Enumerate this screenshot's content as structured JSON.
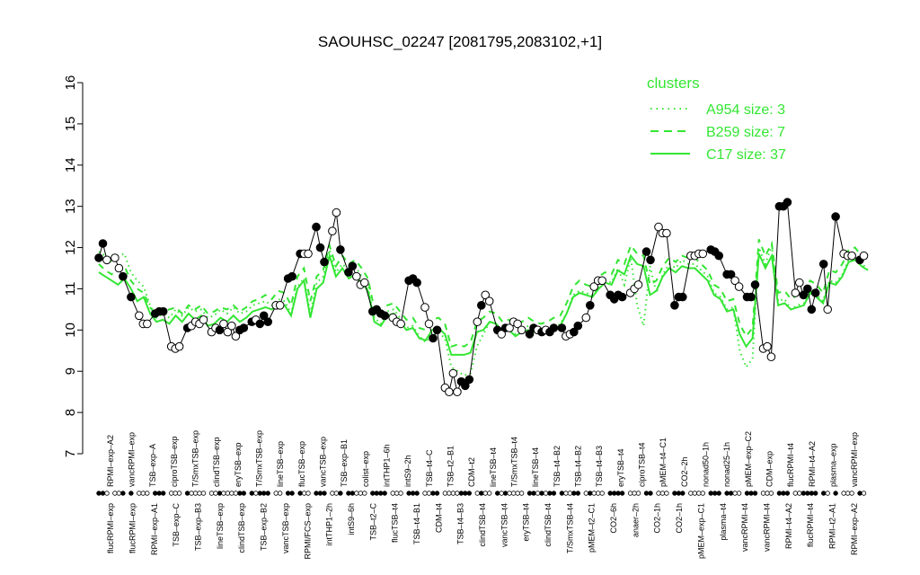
{
  "chart_data": {
    "type": "line",
    "title": "SAOUHSC_02247 [2081795,2083102,+1]",
    "xlabel": "",
    "ylabel": "",
    "ylim": [
      7,
      16
    ],
    "yticks": [
      7,
      8,
      9,
      10,
      11,
      12,
      13,
      14,
      15,
      16
    ],
    "colors": {
      "cluster": "#33e633",
      "main": "#000000"
    },
    "legend": {
      "placement": "top-right",
      "title": "clusters",
      "items": [
        {
          "label": "A954 size: 3",
          "style": "dotted"
        },
        {
          "label": "B259 size: 7",
          "style": "dashed"
        },
        {
          "label": "C17 size: 37",
          "style": "solid"
        }
      ]
    },
    "top_labels": [
      "RPMI–exp–A2",
      "vancRPMI–exp",
      "TSB–exp–A",
      "ciproTSB–exp",
      "T/SmxTSB–exp",
      "clindTSB–exp",
      "eryTSB–exp",
      "T/SmxTSB–exp",
      "lineTSB–exp",
      "flucTSB–exp",
      "vancTSB–exp",
      "TSB–exp–B1",
      "colist–exp",
      "intTHP1–6h",
      "intS9–2h",
      "TSB–t4–C",
      "TSB–t2–B1",
      "CDM–t2",
      "lineTSB–t4",
      "T/SmxTSB–t4",
      "lineTSB–t4",
      "TSB–t4–B2",
      "TSB–t4–B2",
      "TSB–t4–B3",
      "eryTSB–t4",
      "ciproTSB–t4",
      "pMEM–t4–C1",
      "CO2–2h",
      "nonad50–1h",
      "nonad25–1h",
      "pMEM–exp–C2",
      "CDM–exp",
      "flucRPMI–t4",
      "RPMI–t4–A2",
      "plasma–exp",
      "vancRPMI–exp"
    ],
    "bottom_labels": [
      "flucRPMI–exp",
      "flucRPMI–exp",
      "RPMI–exp–A1",
      "TSB–exp–C",
      "TSB–exp–B3",
      "lineTSB–exp",
      "clindTSB–exp",
      "TSB–exp–B2",
      "vancTSB–exp",
      "RPMI/FCS–exp",
      "intTHP1–2h",
      "intS9–6h",
      "TSB–t2–C",
      "flucTSB–t4",
      "TSB–t4–B1",
      "CDM–t4",
      "TSB–t4–B3",
      "clindTSB–t4",
      "vancTSB–t4",
      "eryTSB–t4",
      "clindTSB–t4",
      "T/SmxTSB–t4",
      "pMEM–t2–C1",
      "CO2–6h",
      "anaer–2h",
      "CO2–1h",
      "CO2–1h",
      "pMEM–exp–C1",
      "plasma–t4",
      "vancRPMI–t4",
      "vancRPMI–t4",
      "RPMI–t4–A2",
      "flucRPMI–t4",
      "RPMI–t2–A1",
      "RPMI–exp–A2"
    ],
    "groups": [
      {
        "values": [
          11.75,
          12.1,
          11.7
        ],
        "fill": [
          "filled",
          "filled",
          "open"
        ]
      },
      {
        "values": [
          11.75,
          11.5,
          11.3
        ],
        "fill": [
          "open",
          "open",
          "filled"
        ]
      },
      {
        "values": [
          10.8
        ],
        "fill": [
          "filled"
        ]
      },
      {
        "values": [
          10.35,
          10.15,
          10.15
        ],
        "fill": [
          "open",
          "open",
          "open"
        ]
      },
      {
        "values": [
          10.4,
          10.45,
          10.45
        ],
        "fill": [
          "filled",
          "filled",
          "filled"
        ]
      },
      {
        "values": [
          9.6,
          9.55,
          9.6
        ],
        "fill": [
          "open",
          "open",
          "open"
        ]
      },
      {
        "values": [
          10.05,
          10.1,
          10.2,
          10.15,
          10.25
        ],
        "fill": [
          "filled",
          "open",
          "open",
          "open",
          "open"
        ]
      },
      {
        "values": [
          9.95,
          10.05,
          10.0,
          10.15,
          9.95,
          10.1,
          9.85,
          10.0,
          10.05
        ],
        "fill": [
          "open",
          "open",
          "filled",
          "open",
          "open",
          "open",
          "open",
          "filled",
          "filled"
        ]
      },
      {
        "values": [
          10.2,
          10.25,
          10.15,
          10.35,
          10.2
        ],
        "fill": [
          "filled",
          "open",
          "filled",
          "filled",
          "filled"
        ]
      },
      {
        "values": [
          10.6,
          10.6
        ],
        "fill": [
          "open",
          "open"
        ]
      },
      {
        "values": [
          11.25,
          11.3
        ],
        "fill": [
          "filled",
          "filled"
        ]
      },
      {
        "values": [
          11.85,
          11.85,
          11.85
        ],
        "fill": [
          "filled",
          "open",
          "open"
        ]
      },
      {
        "values": [
          12.5,
          12.0,
          11.65
        ],
        "fill": [
          "filled",
          "filled",
          "filled"
        ]
      },
      {
        "values": [
          12.4,
          12.85,
          11.95
        ],
        "fill": [
          "open",
          "open",
          "filled"
        ]
      },
      {
        "values": [
          11.4,
          11.55,
          11.3,
          11.1,
          11.15
        ],
        "fill": [
          "filled",
          "filled",
          "open",
          "open",
          "open"
        ]
      },
      {
        "values": [
          10.45,
          10.5,
          10.4,
          10.35
        ],
        "fill": [
          "filled",
          "filled",
          "filled",
          "filled"
        ]
      },
      {
        "values": [
          10.3,
          10.2,
          10.15
        ],
        "fill": [
          "open",
          "open",
          "open"
        ]
      },
      {
        "values": [
          11.2,
          11.25,
          11.15
        ],
        "fill": [
          "filled",
          "filled",
          "filled"
        ]
      },
      {
        "values": [
          10.55,
          10.15,
          9.8,
          10.0
        ],
        "fill": [
          "open",
          "open",
          "filled",
          "filled"
        ]
      },
      {
        "values": [
          8.6,
          8.5,
          8.95,
          8.5,
          8.75,
          8.65,
          8.8
        ],
        "fill": [
          "open",
          "open",
          "open",
          "open",
          "filled",
          "filled",
          "filled"
        ]
      },
      {
        "values": [
          10.2,
          10.6,
          10.85,
          10.7
        ],
        "fill": [
          "open",
          "filled",
          "open",
          "open"
        ]
      },
      {
        "values": [
          10.0,
          9.9,
          10.05,
          10.05,
          10.2,
          10.15,
          10.0
        ],
        "fill": [
          "filled",
          "open",
          "filled",
          "open",
          "open",
          "open",
          "open"
        ]
      },
      {
        "values": [
          9.9,
          10.05,
          10.0,
          9.95,
          10.0,
          9.95,
          10.05
        ],
        "fill": [
          "filled",
          "filled",
          "open",
          "filled",
          "open",
          "filled",
          "filled"
        ]
      },
      {
        "values": [
          10.05,
          9.85,
          9.9,
          9.95,
          10.1
        ],
        "fill": [
          "filled",
          "open",
          "open",
          "filled",
          "filled"
        ]
      },
      {
        "values": [
          10.3,
          10.6,
          11.05,
          11.2,
          11.2
        ],
        "fill": [
          "open",
          "filled",
          "open",
          "open",
          "open"
        ]
      },
      {
        "values": [
          10.85,
          10.75,
          10.85,
          10.8
        ],
        "fill": [
          "filled",
          "filled",
          "filled",
          "filled"
        ]
      },
      {
        "values": [
          10.9,
          11.0,
          11.1
        ],
        "fill": [
          "open",
          "open",
          "open"
        ]
      },
      {
        "values": [
          11.9,
          11.7
        ],
        "fill": [
          "filled",
          "filled"
        ]
      },
      {
        "values": [
          12.5,
          12.35,
          12.35
        ],
        "fill": [
          "open",
          "open",
          "open"
        ]
      },
      {
        "values": [
          10.6,
          10.8,
          10.8
        ],
        "fill": [
          "filled",
          "filled",
          "filled"
        ]
      },
      {
        "values": [
          11.8,
          11.8,
          11.85,
          11.85
        ],
        "fill": [
          "open",
          "open",
          "open",
          "open"
        ]
      },
      {
        "values": [
          11.95,
          11.9,
          11.8
        ],
        "fill": [
          "filled",
          "filled",
          "filled"
        ]
      },
      {
        "values": [
          11.35,
          11.35,
          11.2,
          11.05
        ],
        "fill": [
          "filled",
          "filled",
          "open",
          "open"
        ]
      },
      {
        "values": [
          10.8,
          10.8,
          11.1
        ],
        "fill": [
          "filled",
          "filled",
          "filled"
        ]
      },
      {
        "values": [
          9.55,
          9.6,
          9.35
        ],
        "fill": [
          "open",
          "open",
          "open"
        ]
      },
      {
        "values": [
          13.0,
          13.0,
          13.1
        ],
        "fill": [
          "filled",
          "filled",
          "filled"
        ]
      },
      {
        "values": [
          10.9,
          11.15,
          10.85,
          11.0,
          10.5,
          10.9
        ],
        "fill": [
          "open",
          "open",
          "filled",
          "filled",
          "filled",
          "filled"
        ]
      },
      {
        "values": [
          11.6,
          10.5
        ],
        "fill": [
          "filled",
          "open"
        ]
      },
      {
        "values": [
          12.75
        ],
        "fill": [
          "filled"
        ]
      },
      {
        "values": [
          11.85,
          11.8,
          11.8
        ],
        "fill": [
          "open",
          "open",
          "open"
        ]
      },
      {
        "values": [
          11.7,
          11.8
        ],
        "fill": [
          "filled",
          "open"
        ]
      }
    ],
    "clusters": {
      "C17": [
        11.4,
        11.3,
        11.2,
        11.1,
        11.25,
        11.0,
        10.7,
        10.8,
        10.4,
        10.2,
        10.25,
        10.15,
        10.35,
        10.2,
        10.4,
        10.25,
        10.35,
        10.1,
        10.15,
        10.3,
        10.2,
        10.35,
        10.2,
        10.3,
        10.45,
        10.5,
        10.55,
        10.5,
        10.65,
        10.6,
        10.35,
        11.0,
        11.2,
        10.3,
        11.0,
        11.15,
        11.8,
        11.3,
        11.5,
        11.25,
        11.35,
        11.15,
        10.95,
        10.2,
        10.1,
        10.35,
        10.4,
        10.2,
        10.0,
        10.05,
        9.8,
        9.75,
        10.0,
        10.05,
        9.9,
        9.4,
        9.4,
        9.4,
        9.45,
        9.95,
        10.0,
        10.2,
        10.15,
        9.95,
        10.0,
        9.85,
        9.95,
        10.0,
        9.95,
        9.9,
        9.95,
        10.0,
        10.1,
        10.4,
        10.8,
        10.9,
        10.85,
        10.8,
        11.0,
        11.15,
        11.1,
        11.45,
        11.35,
        11.8,
        11.6,
        11.55,
        10.85,
        10.95,
        11.3,
        11.5,
        11.4,
        11.55,
        11.5,
        11.5,
        11.35,
        11.2,
        10.85,
        10.75,
        10.45,
        10.5,
        9.9,
        9.6,
        9.8,
        11.85,
        11.5,
        11.8,
        10.6,
        10.65,
        10.5,
        10.55,
        10.6,
        10.9,
        10.8,
        10.65,
        11.15,
        11.1,
        11.3,
        11.65,
        11.7,
        11.55,
        11.45
      ],
      "B259": [
        11.6,
        11.45,
        11.35,
        11.5,
        11.55,
        11.2,
        11.0,
        10.9,
        10.55,
        10.35,
        10.45,
        10.5,
        10.55,
        10.4,
        10.6,
        10.5,
        10.6,
        10.4,
        10.45,
        10.55,
        10.5,
        10.6,
        10.45,
        10.55,
        10.7,
        10.75,
        10.85,
        10.75,
        10.95,
        10.9,
        10.6,
        11.3,
        11.5,
        10.7,
        11.3,
        11.45,
        12.05,
        11.55,
        11.8,
        11.6,
        11.7,
        11.5,
        11.25,
        10.5,
        10.35,
        10.6,
        10.65,
        10.45,
        10.25,
        10.3,
        10.05,
        10.0,
        10.25,
        10.3,
        10.15,
        9.6,
        9.65,
        9.6,
        9.7,
        10.2,
        10.3,
        10.45,
        10.4,
        10.2,
        10.25,
        10.15,
        10.2,
        10.3,
        10.2,
        10.15,
        10.2,
        10.3,
        10.35,
        10.65,
        11.05,
        11.2,
        11.1,
        11.05,
        11.3,
        11.4,
        11.35,
        11.7,
        11.6,
        12.05,
        11.85,
        11.8,
        11.1,
        11.2,
        11.55,
        11.75,
        11.65,
        11.8,
        11.75,
        11.75,
        11.6,
        11.45,
        11.1,
        11.0,
        10.7,
        10.75,
        10.15,
        9.85,
        10.05,
        12.2,
        11.8,
        12.1,
        10.9,
        10.95,
        10.75,
        10.85,
        10.9,
        11.2,
        11.1,
        10.9,
        11.45,
        11.4,
        11.6,
        11.95,
        12.0,
        11.8,
        11.7
      ],
      "A954": [
        11.9,
        11.8,
        11.65,
        11.8,
        11.85,
        11.4,
        11.2,
        11.05,
        10.6,
        10.3,
        10.4,
        10.3,
        10.5,
        10.35,
        10.55,
        10.45,
        10.5,
        10.3,
        10.35,
        10.5,
        10.4,
        10.55,
        10.4,
        10.45,
        10.6,
        10.65,
        10.7,
        10.6,
        10.75,
        10.7,
        10.4,
        11.05,
        11.25,
        10.4,
        11.15,
        11.3,
        11.95,
        11.4,
        11.6,
        11.45,
        11.55,
        11.3,
        11.05,
        10.3,
        10.15,
        10.45,
        10.5,
        10.3,
        10.05,
        10.1,
        9.85,
        9.7,
        9.9,
        9.95,
        9.8,
        9.1,
        9.0,
        8.9,
        8.95,
        9.6,
        9.9,
        10.2,
        10.15,
        9.95,
        10.05,
        9.9,
        10.0,
        10.1,
        10.0,
        9.95,
        10.0,
        10.05,
        10.15,
        10.4,
        10.85,
        10.95,
        10.9,
        10.85,
        11.05,
        11.2,
        11.15,
        11.5,
        11.1,
        11.75,
        10.6,
        10.1,
        11.55,
        10.9,
        11.35,
        11.6,
        11.5,
        11.7,
        11.6,
        11.6,
        11.45,
        11.3,
        10.9,
        10.8,
        10.5,
        10.55,
        9.5,
        9.1,
        9.3,
        12.0,
        11.6,
        12.05,
        10.7,
        10.75,
        10.5,
        10.6,
        10.65,
        10.95,
        10.85,
        10.7,
        11.2,
        11.15,
        11.35,
        11.7,
        11.75,
        11.6,
        11.5
      ]
    }
  }
}
